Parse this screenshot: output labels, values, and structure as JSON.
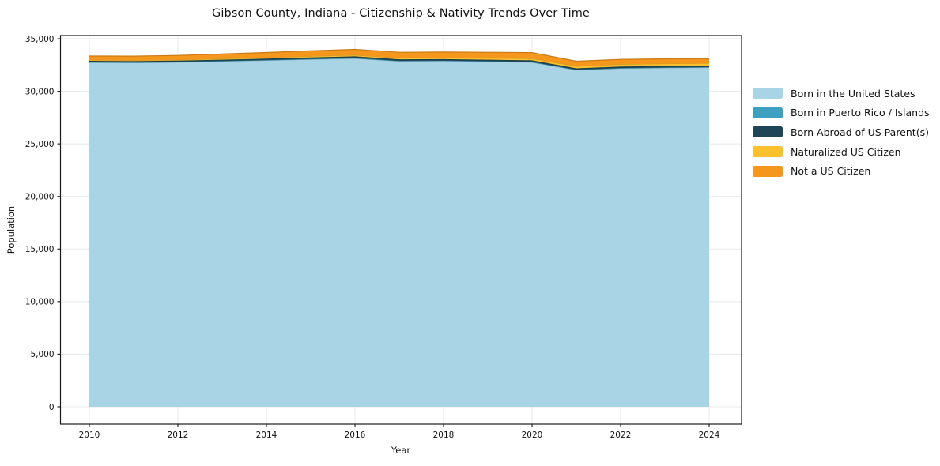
{
  "chart_data": {
    "type": "area",
    "stacked": true,
    "title": "Gibson County, Indiana - Citizenship & Nativity Trends Over Time",
    "xlabel": "Year",
    "ylabel": "Population",
    "grid": true,
    "legend_position": "right",
    "ylim": [
      0,
      35000
    ],
    "x": [
      2010,
      2011,
      2012,
      2013,
      2014,
      2015,
      2016,
      2017,
      2018,
      2019,
      2020,
      2021,
      2022,
      2023,
      2024
    ],
    "xticks": [
      2010,
      2012,
      2014,
      2016,
      2018,
      2020,
      2022,
      2024
    ],
    "xtick_labels": [
      "2010",
      "2012",
      "2014",
      "2016",
      "2018",
      "2020",
      "2022",
      "2024"
    ],
    "yticks": [
      0,
      5000,
      10000,
      15000,
      20000,
      25000,
      30000,
      35000
    ],
    "ytick_labels": [
      "0",
      "5,000",
      "10,000",
      "15,000",
      "20,000",
      "25,000",
      "30,000",
      "35,000"
    ],
    "series": [
      {
        "name": "Born in the United States",
        "color": "#A9D4E6",
        "values": [
          32750,
          32720,
          32760,
          32850,
          32940,
          33040,
          33120,
          32860,
          32880,
          32820,
          32760,
          32020,
          32180,
          32230,
          32260
        ]
      },
      {
        "name": "Born in Puerto Rico / Islands",
        "color": "#3EA0C0",
        "values": [
          30,
          30,
          30,
          30,
          35,
          40,
          45,
          40,
          40,
          40,
          35,
          30,
          35,
          35,
          40
        ]
      },
      {
        "name": "Born Abroad of US Parent(s)",
        "color": "#1F4657",
        "values": [
          120,
          115,
          120,
          125,
          130,
          140,
          150,
          140,
          135,
          140,
          145,
          130,
          135,
          140,
          140
        ]
      },
      {
        "name": "Naturalized US Citizen",
        "color": "#FBC02D",
        "values": [
          70,
          75,
          80,
          90,
          100,
          110,
          120,
          130,
          145,
          160,
          180,
          200,
          220,
          230,
          230
        ]
      },
      {
        "name": "Not a US Citizen",
        "color": "#F5961D",
        "values": [
          380,
          400,
          420,
          450,
          480,
          520,
          550,
          540,
          530,
          545,
          560,
          480,
          460,
          450,
          420
        ]
      }
    ]
  },
  "colors": {
    "background": "#ffffff",
    "grid": "#e8e8e8",
    "axis": "#1a1a1a",
    "text": "#111111"
  }
}
